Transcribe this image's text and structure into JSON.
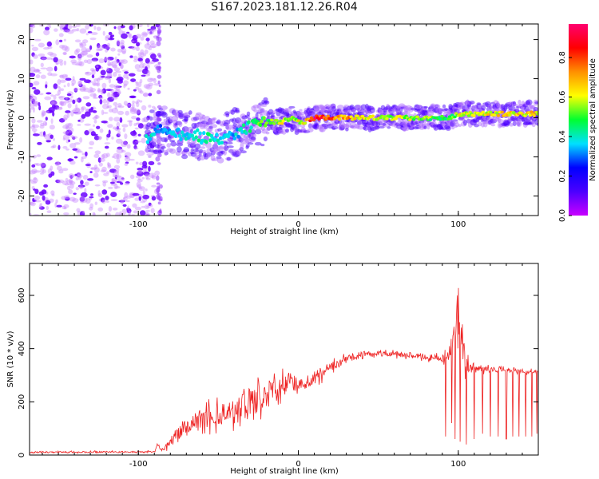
{
  "title": "S167.2023.181.12.26.R04",
  "chart_data": [
    {
      "type": "heatmap",
      "xlabel": "Height of straight line (km)",
      "ylabel": "Frequency (Hz)",
      "xlim": [
        -168,
        150
      ],
      "ylim": [
        -25,
        24
      ],
      "x_ticks": [
        -100,
        0,
        100
      ],
      "x_tick_labels": [
        "-100",
        "0",
        "100"
      ],
      "y_ticks": [
        -20,
        -10,
        0,
        10,
        20
      ],
      "y_tick_labels": [
        "-20",
        "-10",
        "0",
        "10",
        "20"
      ],
      "grid": false,
      "colorbar": {
        "label": "Normalized spectral amplitude",
        "range": [
          0.0,
          0.97
        ],
        "ticks": [
          0.0,
          0.2,
          0.4,
          0.6,
          0.8
        ],
        "tick_labels": [
          "0.0",
          "0.2",
          "0.4",
          "0.6",
          "0.8"
        ],
        "colormap": [
          "#c800ff",
          "#4b00ff",
          "#0000ff",
          "#00e0ff",
          "#00ff30",
          "#ffff00",
          "#ff9000",
          "#ff0000",
          "#ff0070"
        ]
      },
      "noise_region": {
        "x_range": [
          -168,
          -88
        ],
        "freq_range": [
          -25,
          24
        ]
      },
      "ridge": {
        "x": [
          -95,
          -90,
          -85,
          -80,
          -75,
          -70,
          -65,
          -60,
          -55,
          -50,
          -45,
          -40,
          -35,
          -30,
          -25,
          -20,
          -15,
          -10,
          -5,
          0,
          5,
          10,
          20,
          40,
          60,
          80,
          95,
          100,
          120,
          150
        ],
        "freq": [
          -5,
          -4,
          -3,
          -4,
          -4,
          -5,
          -4,
          -5,
          -5,
          -6,
          -5,
          -4,
          -3,
          -2,
          -1,
          -1,
          -1,
          -1,
          0,
          -1,
          -1,
          0,
          0,
          0,
          0,
          0,
          0,
          1,
          1,
          1
        ],
        "amplitude": [
          0.45,
          0.35,
          0.3,
          0.35,
          0.4,
          0.4,
          0.45,
          0.4,
          0.45,
          0.4,
          0.4,
          0.35,
          0.4,
          0.45,
          0.5,
          0.5,
          0.55,
          0.6,
          0.6,
          0.6,
          0.7,
          0.9,
          0.8,
          0.65,
          0.6,
          0.55,
          0.5,
          0.6,
          0.65,
          0.65
        ]
      }
    },
    {
      "type": "line",
      "xlabel": "Height of straight line (km)",
      "ylabel": "SNR (10 * v/v)",
      "xlim": [
        -168,
        150
      ],
      "ylim": [
        0,
        720
      ],
      "x_ticks": [
        -100,
        0,
        100
      ],
      "x_tick_labels": [
        "-100",
        "0",
        "100"
      ],
      "y_ticks": [
        0,
        200,
        400,
        600
      ],
      "y_tick_labels": [
        "0",
        "200",
        "400",
        "600"
      ],
      "grid": false,
      "series": [
        {
          "color": "#ee2222",
          "envelope": {
            "x": [
              -168,
              -90,
              -88,
              -85,
              -80,
              -75,
              -70,
              -60,
              -50,
              -40,
              -30,
              -20,
              -10,
              0,
              10,
              20,
              30,
              40,
              50,
              60,
              70,
              80,
              90,
              95,
              100,
              102,
              105,
              110,
              120,
              130,
              140,
              150
            ],
            "y": [
              10,
              12,
              40,
              15,
              50,
              80,
              110,
              140,
              150,
              170,
              200,
              230,
              260,
              270,
              290,
              330,
              360,
              380,
              380,
              380,
              375,
              370,
              360,
              380,
              550,
              400,
              350,
              330,
              320,
              320,
              315,
              315
            ],
            "spread": [
              5,
              5,
              10,
              10,
              30,
              50,
              60,
              70,
              70,
              80,
              90,
              90,
              70,
              50,
              45,
              35,
              25,
              20,
              18,
              18,
              20,
              20,
              25,
              60,
              160,
              140,
              70,
              25,
              20,
              15,
              15,
              15
            ]
          },
          "dropouts": {
            "x": [
              92,
              96,
              98,
              101,
              105,
              110,
              115,
              120,
              125,
              130,
              134,
              138,
              142,
              146,
              149
            ],
            "y": [
              70,
              120,
              60,
              50,
              40,
              60,
              80,
              70,
              70,
              60,
              70,
              70,
              70,
              70,
              80
            ]
          }
        }
      ]
    }
  ]
}
